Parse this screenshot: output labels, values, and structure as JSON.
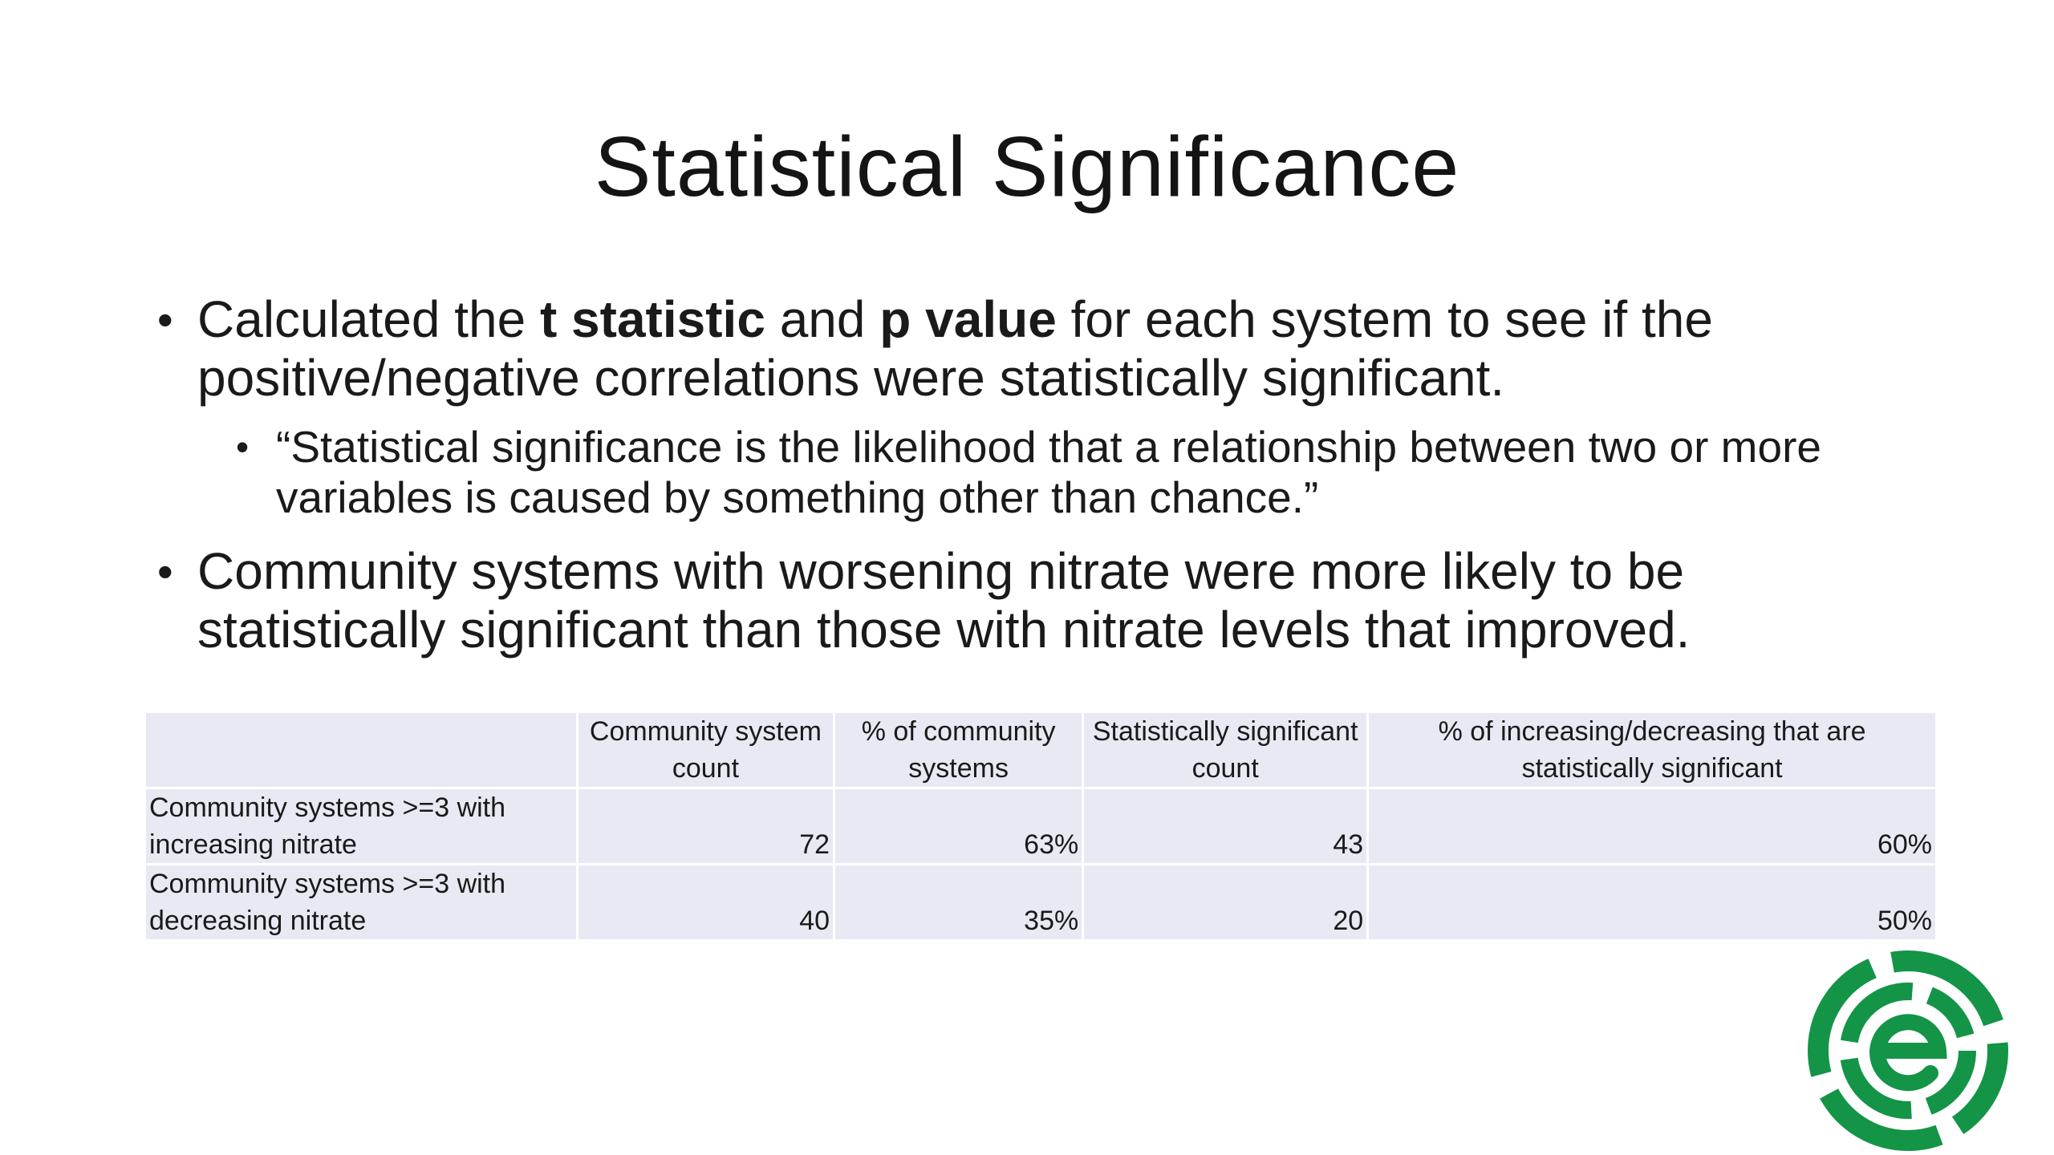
{
  "slide": {
    "title": "Statistical Significance",
    "bullets": [
      {
        "prefix": "Calculated the ",
        "bold1": "t statistic",
        "middle": " and ",
        "bold2": "p value",
        "suffix": " for each system to see if the positive/negative correlations were statistically significant."
      },
      {
        "text": "Community systems with worsening nitrate were more likely to be statistically significant than those with nitrate levels that improved."
      }
    ],
    "sub_bullet": "“Statistical significance is the likelihood that a relationship between two or more variables is caused by something other than chance.”",
    "bullet_glyph": "•"
  },
  "table": {
    "headers": [
      "",
      "Community system count",
      "% of community systems",
      "Statistically significant count",
      "% of increasing/decreasing that are statistically significant"
    ],
    "rows": [
      {
        "label": "Community systems >=3 with increasing nitrate",
        "count": "72",
        "pct_systems": "63%",
        "sig_count": "43",
        "pct_sig": "60%"
      },
      {
        "label": "Community systems >=3 with decreasing nitrate",
        "count": "40",
        "pct_systems": "35%",
        "sig_count": "20",
        "pct_sig": "50%"
      }
    ]
  },
  "logo": {
    "icon": "green-e-logo-icon",
    "color": "#139447"
  }
}
